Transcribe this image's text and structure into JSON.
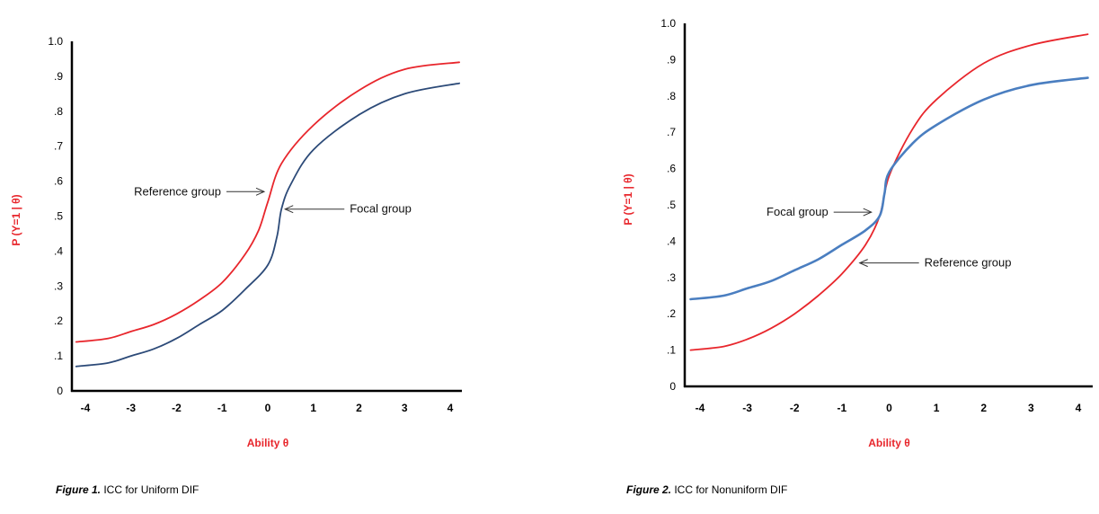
{
  "chart_data": [
    {
      "type": "line",
      "caption_label": "Figure 1.",
      "caption_text": " ICC for Uniform DIF",
      "xlabel": "Ability θ",
      "ylabel": "P (Y=1 | θ)",
      "xlim": [
        -4.4,
        4.3
      ],
      "ylim": [
        0,
        1.0
      ],
      "x_ticks": [
        "-4",
        "-3",
        "-2",
        "-1",
        "0",
        "1",
        "2",
        "3",
        "4"
      ],
      "y_ticks": [
        "0",
        ".1",
        ".2",
        ".3",
        ".4",
        ".5",
        ".6",
        ".7",
        ".8",
        ".9",
        "1.0"
      ],
      "series": [
        {
          "name": "Reference group",
          "color": "#e8262c",
          "x": [
            -4.2,
            -3.5,
            -3,
            -2.5,
            -2,
            -1.5,
            -1,
            -0.5,
            -0.2,
            0,
            0.3,
            1,
            2,
            3,
            4.2
          ],
          "y": [
            0.14,
            0.15,
            0.17,
            0.19,
            0.22,
            0.26,
            0.31,
            0.39,
            0.46,
            0.54,
            0.65,
            0.76,
            0.86,
            0.92,
            0.94
          ]
        },
        {
          "name": "Focal group",
          "color": "#2c4a78",
          "x": [
            -4.2,
            -3.5,
            -3,
            -2.5,
            -2,
            -1.5,
            -1,
            -0.5,
            0,
            0.2,
            0.3,
            0.5,
            1,
            2,
            3,
            4.2
          ],
          "y": [
            0.07,
            0.08,
            0.1,
            0.12,
            0.15,
            0.19,
            0.23,
            0.29,
            0.36,
            0.44,
            0.52,
            0.59,
            0.69,
            0.79,
            0.85,
            0.88
          ]
        }
      ],
      "annotations": [
        {
          "text": "Reference group",
          "series": "Reference group",
          "at_x": 0.0,
          "at_y": 0.57,
          "side": "left"
        },
        {
          "text": "Focal group",
          "series": "Focal group",
          "at_x": 0.3,
          "at_y": 0.52,
          "side": "right"
        }
      ]
    },
    {
      "type": "line",
      "caption_label": "Figure 2.",
      "caption_text": " ICC for Nonuniform  DIF",
      "xlabel": "Ability θ",
      "ylabel": "P (Y=1 | θ)",
      "xlim": [
        -4.4,
        4.3
      ],
      "ylim": [
        0,
        1.0
      ],
      "x_ticks": [
        "-4",
        "-3",
        "-2",
        "-1",
        "0",
        "1",
        "2",
        "3",
        "4"
      ],
      "y_ticks": [
        "0",
        ".1",
        ".2",
        ".3",
        ".4",
        ".5",
        ".6",
        ".7",
        ".8",
        ".9",
        "1.0"
      ],
      "series": [
        {
          "name": "Reference group",
          "color": "#e8262c",
          "x": [
            -4.2,
            -3.5,
            -3,
            -2.5,
            -2,
            -1.5,
            -1,
            -0.5,
            -0.2,
            0,
            0.5,
            1,
            2,
            3,
            4.2
          ],
          "y": [
            0.1,
            0.11,
            0.13,
            0.16,
            0.2,
            0.25,
            0.31,
            0.39,
            0.47,
            0.58,
            0.71,
            0.79,
            0.89,
            0.94,
            0.97
          ]
        },
        {
          "name": "Focal group",
          "color": "#4a7ec0",
          "x": [
            -4.2,
            -3.5,
            -3,
            -2.5,
            -2,
            -1.5,
            -1,
            -0.5,
            -0.2,
            -0.1,
            0,
            0.5,
            1,
            2,
            3,
            4.2
          ],
          "y": [
            0.24,
            0.25,
            0.27,
            0.29,
            0.32,
            0.35,
            0.39,
            0.43,
            0.47,
            0.53,
            0.59,
            0.67,
            0.72,
            0.79,
            0.83,
            0.85
          ]
        }
      ],
      "annotations": [
        {
          "text": "Focal group",
          "series": "Focal group",
          "at_x": -0.3,
          "at_y": 0.48,
          "side": "left"
        },
        {
          "text": "Reference group",
          "series": "Reference group",
          "at_x": -0.7,
          "at_y": 0.34,
          "side": "right"
        }
      ]
    }
  ],
  "colors": {
    "axis": "#000000",
    "axis_label": "#e8262c"
  }
}
